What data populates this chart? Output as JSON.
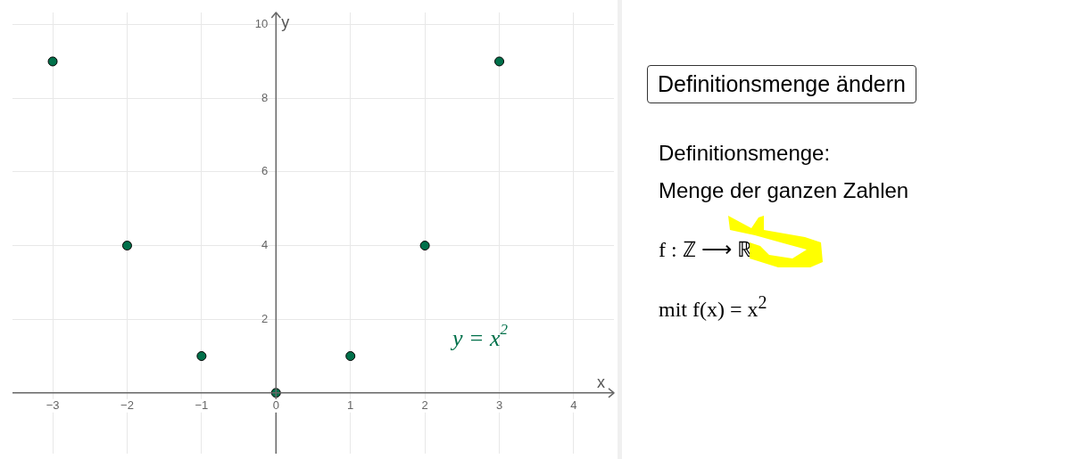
{
  "chart_data": {
    "type": "scatter",
    "xlabel": "x",
    "ylabel": "y",
    "x": [
      -3,
      -2,
      -1,
      0,
      1,
      2,
      3
    ],
    "series": [
      {
        "name": "y = x$^{2}$",
        "color": "#00704a",
        "values": [
          9,
          4,
          1,
          0,
          1,
          4,
          9
        ]
      }
    ],
    "marker": "circle",
    "xlim": [
      -3.54,
      4.54
    ],
    "ylim": [
      -1.65,
      10.33
    ],
    "xticks": [
      -3,
      -2,
      -1,
      0,
      1,
      2,
      3,
      4
    ],
    "yticks": [
      {
        "value": 0,
        "label": null
      },
      2,
      4,
      6,
      8,
      10
    ],
    "grid": true,
    "legend": false,
    "annotations": [
      "Definitionsmenge ändern",
      "Definitionsmenge:",
      "Menge der ganzen Zahlen",
      "f : ℤ ⟶ ℝ",
      "mit f(x) = x$^{2}$"
    ]
  }
}
